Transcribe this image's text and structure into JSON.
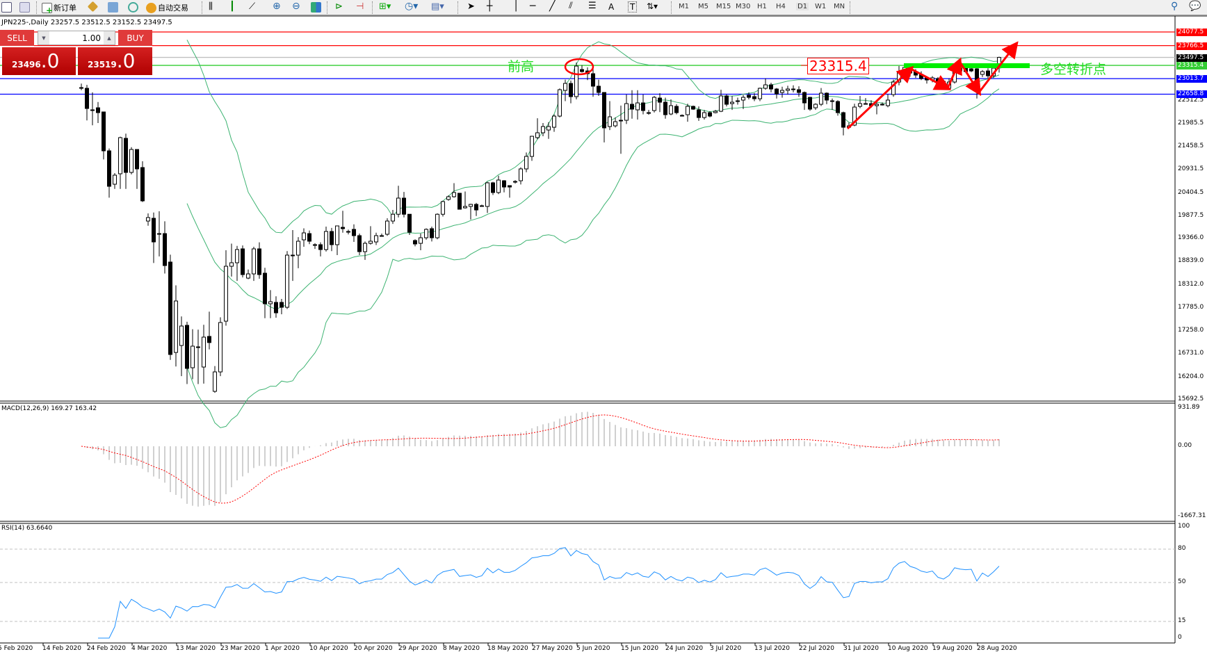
{
  "toolbar": {
    "new_order": "新订单",
    "auto_trading": "自动交易",
    "timeframes": [
      "M1",
      "M5",
      "M15",
      "M30",
      "H1",
      "H4",
      "D1",
      "W1",
      "MN"
    ],
    "active_timeframe": "D1"
  },
  "chart_header": "JPN225-,Daily  23257.5 23512.5 23152.5 23497.5",
  "one_click": {
    "sell_label": "SELL",
    "buy_label": "BUY",
    "lot": "1.00",
    "sell_price_main": "23496",
    "sell_price_big": ".0",
    "buy_price_main": "23519",
    "buy_price_big": ".0"
  },
  "annotations": {
    "prev_high": "前高",
    "pivot": "多空转折点",
    "level_label": "23315.4"
  },
  "colors": {
    "bullish": "#ffffff",
    "bearish": "#000000",
    "bands": "#3cb371",
    "macd_hist": "#c0c0c0",
    "macd_signal": "#ff0000",
    "rsi": "#1e90ff",
    "arrows": "#ff0000",
    "pivot_bar": "#00ee00"
  },
  "chart_data": [
    {
      "type": "candlestick",
      "symbol": "JPN225-",
      "timeframe": "Daily",
      "indicators": [
        "Bollinger Bands"
      ],
      "y_ticks": [
        "22512.5",
        "21985.5",
        "21458.5",
        "20931.5",
        "20404.5",
        "19877.5",
        "19366.0",
        "18839.0",
        "18312.0",
        "17785.0",
        "17258.0",
        "16731.0",
        "16204.0",
        "15692.5"
      ],
      "ylim": [
        15692.5,
        24450
      ],
      "x_labels": [
        "5 Feb 2020",
        "14 Feb 2020",
        "24 Feb 2020",
        "4 Mar 2020",
        "13 Mar 2020",
        "23 Mar 2020",
        "1 Apr 2020",
        "10 Apr 2020",
        "20 Apr 2020",
        "29 Apr 2020",
        "8 May 2020",
        "18 May 2020",
        "27 May 2020",
        "5 Jun 2020",
        "15 Jun 2020",
        "24 Jun 2020",
        "3 Jul 2020",
        "13 Jul 2020",
        "22 Jul 2020",
        "31 Jul 2020",
        "10 Aug 2020",
        "19 Aug 2020",
        "28 Aug 2020"
      ],
      "levels": [
        {
          "price": "24077.5",
          "color": "#ff0000"
        },
        {
          "price": "23766.5",
          "color": "#ff0000"
        },
        {
          "price": "23497.5",
          "color": "#000000"
        },
        {
          "price": "23315.4",
          "color": "#32cd32"
        },
        {
          "price": "23013.7",
          "color": "#0000ff"
        },
        {
          "price": "22658.8",
          "color": "#0000ff"
        }
      ],
      "ohlc": [
        [
          22809,
          22900,
          22750,
          22809
        ],
        [
          22793,
          22870,
          22060,
          22333
        ],
        [
          22302,
          22700,
          21950,
          22302
        ],
        [
          22349,
          22480,
          22000,
          22238
        ],
        [
          22254,
          22254,
          21170,
          21367
        ],
        [
          21367,
          21420,
          20300,
          20558
        ],
        [
          20606,
          20860,
          20500,
          20812
        ],
        [
          20844,
          21690,
          20500,
          21668
        ],
        [
          21652,
          21760,
          20500,
          20875
        ],
        [
          20875,
          21450,
          20830,
          21398
        ],
        [
          21398,
          21398,
          20500,
          20955
        ],
        [
          20986,
          21130,
          20200,
          20226
        ],
        [
          19766,
          19940,
          19660,
          19845
        ],
        [
          19829,
          19960,
          18810,
          19290
        ],
        [
          19465,
          19990,
          18960,
          19480
        ],
        [
          19480,
          19760,
          18570,
          18751
        ],
        [
          18831,
          19000,
          16600,
          16723
        ],
        [
          16770,
          18300,
          16450,
          17943
        ],
        [
          16928,
          17590,
          16230,
          17372
        ],
        [
          17388,
          17470,
          16050,
          16406
        ],
        [
          16421,
          17300,
          16160,
          16913
        ],
        [
          16897,
          17290,
          16050,
          16897
        ],
        [
          16437,
          17400,
          16060,
          17119
        ],
        [
          17135,
          17700,
          16840,
          16995
        ],
        [
          15883,
          16460,
          15850,
          16326
        ],
        [
          16326,
          17570,
          16230,
          17452
        ],
        [
          17483,
          19100,
          17380,
          18735
        ],
        [
          18735,
          19250,
          18500,
          18815
        ],
        [
          18815,
          19200,
          18400,
          19116
        ],
        [
          19132,
          19210,
          18480,
          18545
        ],
        [
          18465,
          18660,
          18440,
          18561
        ],
        [
          18561,
          19180,
          18400,
          19132
        ],
        [
          19132,
          19280,
          18450,
          18545
        ],
        [
          18577,
          18700,
          17550,
          17880
        ],
        [
          17880,
          18190,
          17550,
          17927
        ],
        [
          17911,
          18050,
          17560,
          17673
        ],
        [
          17911,
          17990,
          17640,
          17800
        ],
        [
          17800,
          19080,
          17760,
          18989
        ],
        [
          18989,
          19560,
          18400,
          18989
        ],
        [
          18989,
          19400,
          18690,
          19306
        ],
        [
          19338,
          19600,
          19180,
          19496
        ],
        [
          19480,
          19550,
          19240,
          19306
        ],
        [
          19227,
          19260,
          19130,
          19227
        ],
        [
          19227,
          19280,
          18960,
          19116
        ],
        [
          19116,
          19640,
          19070,
          19528
        ],
        [
          19528,
          19610,
          19080,
          19227
        ],
        [
          19227,
          19660,
          18990,
          19655
        ],
        [
          19623,
          20000,
          19500,
          19592
        ],
        [
          19528,
          19570,
          19460,
          19528
        ],
        [
          19576,
          19690,
          19290,
          19433
        ],
        [
          19433,
          19480,
          18990,
          19068
        ],
        [
          19068,
          19300,
          18880,
          19258
        ],
        [
          19258,
          19650,
          19230,
          19306
        ],
        [
          19290,
          19500,
          19220,
          19433
        ],
        [
          19433,
          19480,
          19420,
          19433
        ],
        [
          19465,
          19830,
          19430,
          19766
        ],
        [
          19766,
          20020,
          19700,
          19921
        ],
        [
          19921,
          20570,
          19850,
          20289
        ],
        [
          20289,
          20430,
          19850,
          19921
        ],
        [
          19921,
          19921,
          19450,
          19512
        ],
        [
          19322,
          19350,
          19190,
          19243
        ],
        [
          19258,
          19480,
          19100,
          19385
        ],
        [
          19385,
          19600,
          19340,
          19576
        ],
        [
          19592,
          19640,
          19300,
          19385
        ],
        [
          19385,
          19940,
          19350,
          19921
        ],
        [
          19921,
          20230,
          19870,
          20210
        ],
        [
          20258,
          20350,
          20230,
          20321
        ],
        [
          20321,
          20630,
          20300,
          20416
        ],
        [
          20400,
          20400,
          20030,
          20035
        ],
        [
          20067,
          20440,
          20050,
          20099
        ],
        [
          20099,
          20160,
          19800,
          20146
        ],
        [
          20146,
          20180,
          19880,
          20019
        ],
        [
          20115,
          20140,
          20100,
          20115
        ],
        [
          20099,
          20660,
          19950,
          20638
        ],
        [
          20638,
          20660,
          20360,
          20416
        ],
        [
          20416,
          20800,
          20380,
          20701
        ],
        [
          20685,
          20700,
          20420,
          20542
        ],
        [
          20574,
          20570,
          20300,
          20542
        ],
        [
          20653,
          20700,
          20620,
          20669
        ],
        [
          20685,
          20990,
          20600,
          20955
        ],
        [
          20955,
          21330,
          20880,
          21240
        ],
        [
          21240,
          21710,
          21140,
          21699
        ],
        [
          21668,
          22110,
          21630,
          21779
        ],
        [
          21779,
          22000,
          21700,
          21921
        ],
        [
          21842,
          22020,
          21640,
          21921
        ],
        [
          21905,
          22200,
          21800,
          22159
        ],
        [
          22159,
          22790,
          22130,
          22761
        ],
        [
          22746,
          22990,
          22500,
          22904
        ],
        [
          22904,
          22970,
          22450,
          22603
        ],
        [
          22603,
          23380,
          22540,
          23300
        ],
        [
          23221,
          23320,
          23150,
          23174
        ],
        [
          23189,
          23270,
          22980,
          23126
        ],
        [
          23126,
          23270,
          22600,
          22841
        ],
        [
          22841,
          22990,
          22620,
          22698
        ],
        [
          22698,
          22700,
          21560,
          21890
        ],
        [
          21921,
          22500,
          21840,
          22143
        ],
        [
          21937,
          22130,
          21900,
          22032
        ],
        [
          22064,
          22400,
          21300,
          22064
        ],
        [
          22064,
          22650,
          21980,
          22444
        ],
        [
          22429,
          22750,
          22100,
          22318
        ],
        [
          22302,
          22750,
          22080,
          22460
        ],
        [
          22460,
          22650,
          22200,
          22286
        ],
        [
          22222,
          22300,
          22190,
          22238
        ],
        [
          22286,
          22620,
          22240,
          22587
        ],
        [
          22571,
          22680,
          22250,
          22476
        ],
        [
          22476,
          22580,
          22100,
          22191
        ],
        [
          22207,
          22540,
          22180,
          22397
        ],
        [
          22381,
          22430,
          22200,
          22238
        ],
        [
          22175,
          22200,
          22150,
          22175
        ],
        [
          22191,
          22440,
          22030,
          22381
        ],
        [
          22381,
          22400,
          22300,
          22318
        ],
        [
          22302,
          22380,
          22050,
          22127
        ],
        [
          22127,
          22300,
          22080,
          22238
        ],
        [
          22238,
          22270,
          22130,
          22159
        ],
        [
          22238,
          22300,
          22220,
          22270
        ],
        [
          22270,
          22760,
          22250,
          22619
        ],
        [
          22619,
          22650,
          22380,
          22429
        ],
        [
          22444,
          22620,
          22300,
          22476
        ],
        [
          22508,
          22580,
          22420,
          22508
        ],
        [
          22524,
          22640,
          22320,
          22587
        ],
        [
          22635,
          22700,
          22540,
          22587
        ],
        [
          22603,
          22680,
          22500,
          22555
        ],
        [
          22555,
          22810,
          22500,
          22793
        ],
        [
          22793,
          23020,
          22760,
          22872
        ],
        [
          22872,
          22920,
          22700,
          22777
        ],
        [
          22777,
          22800,
          22560,
          22666
        ],
        [
          22698,
          22830,
          22580,
          22746
        ],
        [
          22746,
          22850,
          22650,
          22777
        ],
        [
          22777,
          22860,
          22700,
          22761
        ],
        [
          22761,
          22840,
          22600,
          22698
        ],
        [
          22698,
          22720,
          22300,
          22460
        ],
        [
          22587,
          22600,
          22280,
          22318
        ],
        [
          22349,
          22450,
          22300,
          22429
        ],
        [
          22429,
          22800,
          22390,
          22682
        ],
        [
          22682,
          22700,
          22430,
          22524
        ],
        [
          22508,
          22560,
          22300,
          22508
        ],
        [
          22492,
          22520,
          22170,
          22238
        ],
        [
          22238,
          22260,
          21720,
          21905
        ],
        [
          21905,
          22010,
          21880,
          21937
        ],
        [
          21953,
          22440,
          21930,
          22365
        ],
        [
          22381,
          22620,
          22340,
          22444
        ],
        [
          22444,
          22570,
          22420,
          22444
        ],
        [
          22444,
          22520,
          22350,
          22397
        ],
        [
          22397,
          22470,
          22200,
          22429
        ],
        [
          22429,
          22470,
          22400,
          22429
        ],
        [
          22397,
          22660,
          22360,
          22524
        ],
        [
          22650,
          22990,
          22600,
          22936
        ],
        [
          22936,
          23300,
          22860,
          23174
        ],
        [
          23174,
          23320,
          23100,
          23269
        ],
        [
          23253,
          23280,
          23060,
          23142
        ],
        [
          23174,
          23230,
          23030,
          23094
        ],
        [
          23110,
          23180,
          22980,
          23015
        ],
        [
          23031,
          23060,
          22900,
          22983
        ],
        [
          22983,
          23070,
          22930,
          23031
        ],
        [
          23015,
          23050,
          22790,
          22872
        ],
        [
          22952,
          22990,
          22760,
          22825
        ],
        [
          22793,
          23020,
          22760,
          22936
        ],
        [
          22936,
          23280,
          22900,
          23221
        ],
        [
          23253,
          23330,
          23140,
          23189
        ],
        [
          23253,
          23300,
          23140,
          23174
        ],
        [
          23237,
          23300,
          23160,
          23189
        ],
        [
          23237,
          23290,
          22560,
          22904
        ],
        [
          23110,
          23210,
          23050,
          23174
        ],
        [
          23189,
          23250,
          23020,
          23078
        ],
        [
          23078,
          23300,
          23030,
          23253
        ],
        [
          23257.5,
          23512.5,
          23152.5,
          23497.5
        ]
      ]
    },
    {
      "type": "bar+line",
      "label": "MACD(12,26,9) 169.27 163.42",
      "y_ticks": [
        "931.89",
        "0.00",
        "-1667.31"
      ],
      "ylim": [
        -1667.31,
        931.89
      ]
    },
    {
      "type": "line",
      "label": "RSI(14) 63.6640",
      "y_ticks": [
        "100",
        "80",
        "50",
        "15",
        "0"
      ],
      "levels": [
        80,
        50,
        15
      ],
      "ylim": [
        0,
        100
      ]
    }
  ]
}
